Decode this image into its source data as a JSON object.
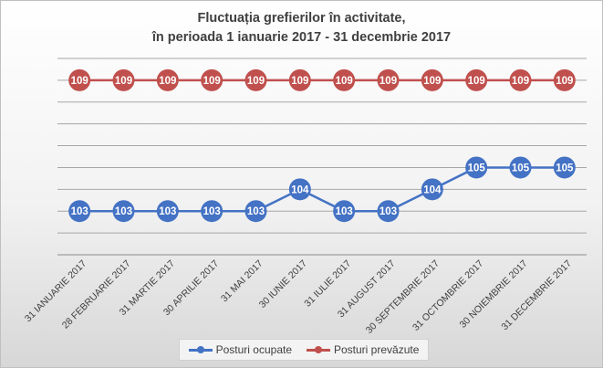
{
  "chart_data": {
    "type": "line",
    "title_line1": "Fluctuația grefierilor în activitate,",
    "title_line2": "în perioada 1 ianuarie 2017 - 31 decembrie 2017",
    "categories": [
      "31 IANUARIE 2017",
      "28 FEBRUARIE 2017",
      "31 MARTIE 2017",
      "30 APRILIE 2017",
      "31 MAI 2017",
      "30 IUNIE 2017",
      "31 IULIE 2017",
      "31 AUGUST 2017",
      "30 SEPTEMBRIE 2017",
      "31 OCTOMBRIE 2017",
      "30 NOIEMBRIE 2017",
      "31 DECEMBRIE 2017"
    ],
    "series": [
      {
        "name": "Posturi ocupate",
        "color": "#4472c4",
        "values": [
          103,
          103,
          103,
          103,
          103,
          104,
          103,
          103,
          104,
          105,
          105,
          105
        ]
      },
      {
        "name": "Posturi prevăzute",
        "color": "#c0504d",
        "values": [
          109,
          109,
          109,
          109,
          109,
          109,
          109,
          109,
          109,
          109,
          109,
          109
        ]
      }
    ],
    "ylim": [
      101,
      110
    ],
    "grid": true,
    "legend_position": "bottom"
  }
}
